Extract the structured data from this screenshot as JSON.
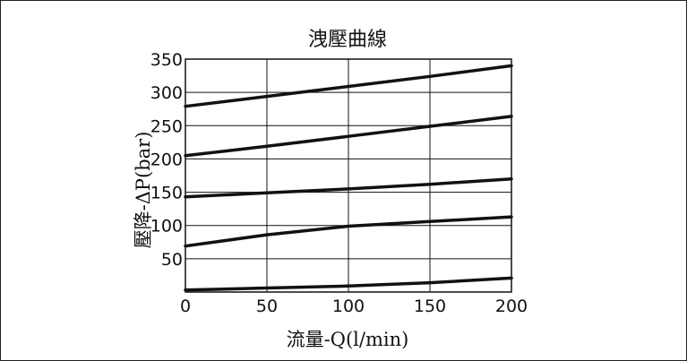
{
  "chart_data": {
    "type": "line",
    "title": "洩壓曲線",
    "xlabel": "流量-Q(l/min)",
    "ylabel": "壓降-ΔP(bar)",
    "xlim": [
      0,
      200
    ],
    "ylim": [
      0,
      350
    ],
    "x_ticks": [
      "0",
      "50",
      "100",
      "150",
      "200"
    ],
    "y_ticks": [
      "50",
      "100",
      "150",
      "200",
      "250",
      "300",
      "350"
    ],
    "grid": true,
    "series": [
      {
        "x": [
          0,
          50,
          100,
          150,
          200
        ],
        "y": [
          279,
          294,
          309,
          324,
          340
        ]
      },
      {
        "x": [
          0,
          50,
          100,
          150,
          200
        ],
        "y": [
          205,
          219,
          234,
          249,
          264
        ]
      },
      {
        "x": [
          0,
          50,
          100,
          150,
          200
        ],
        "y": [
          143,
          149,
          155,
          162,
          170
        ]
      },
      {
        "x": [
          0,
          50,
          100,
          150,
          200
        ],
        "y": [
          69,
          86,
          99,
          106,
          113
        ]
      },
      {
        "x": [
          0,
          50,
          100,
          150,
          200
        ],
        "y": [
          3,
          6,
          9,
          14,
          21
        ]
      }
    ]
  }
}
